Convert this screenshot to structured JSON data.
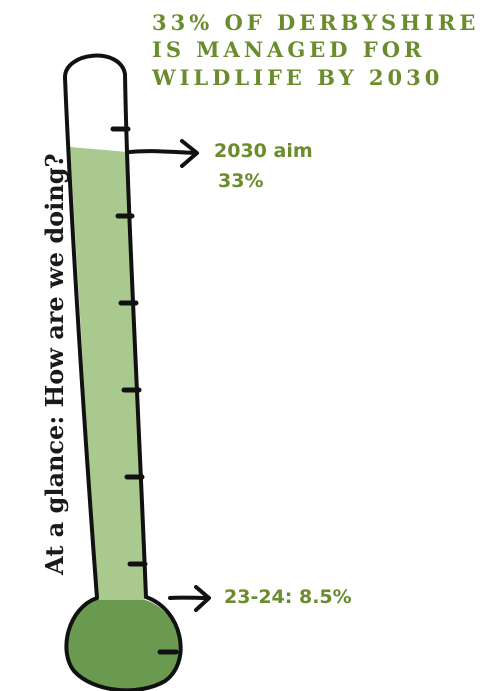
{
  "headline": {
    "lines": [
      "33% OF DERBYSHIRE",
      "IS MANAGED FOR",
      "WILDLIFE BY 2030"
    ]
  },
  "side_heading": "At a glance: How are we doing?",
  "target": {
    "label": "2030 aim",
    "value_text": "33%",
    "value": 33
  },
  "current": {
    "label": "23-24: 8.5%",
    "value": 8.5
  },
  "colors": {
    "headline": "#6a8c2c",
    "annotation": "#6a8c2c",
    "tube_fill": "#a9c98e",
    "bulb_fill": "#6a9a50",
    "outline": "#111111"
  }
}
